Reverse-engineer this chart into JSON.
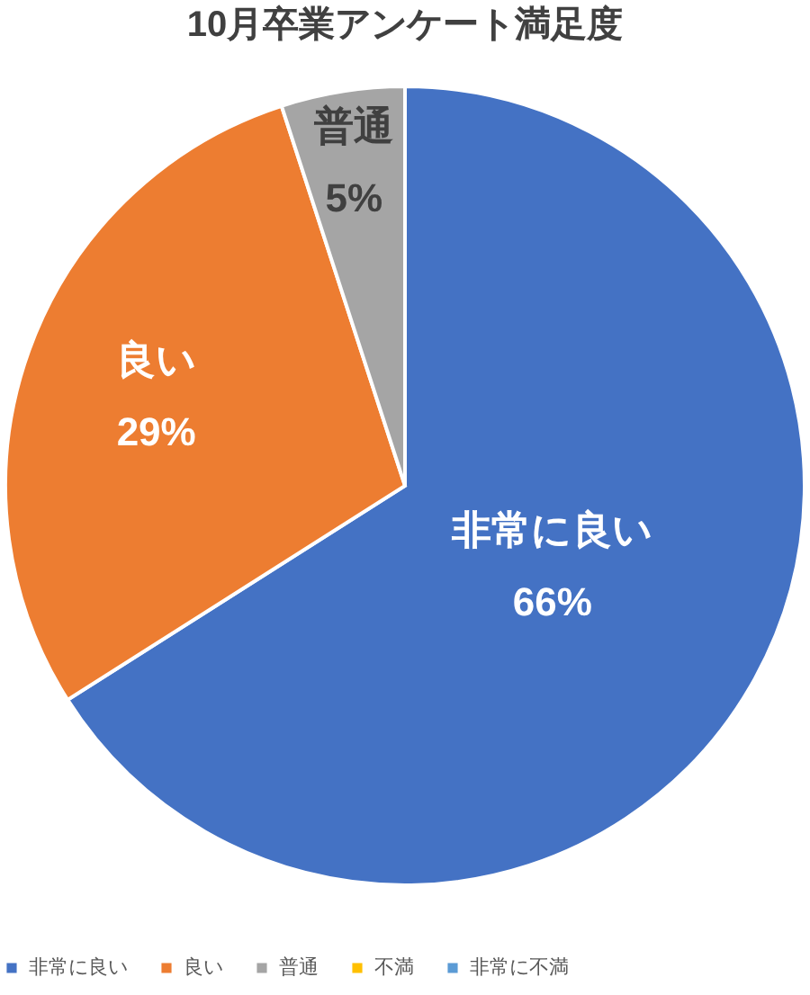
{
  "chart_data": {
    "type": "pie",
    "title": "10月卒業アンケート満足度",
    "categories": [
      "非常に良い",
      "良い",
      "普通",
      "不満",
      "非常に不満"
    ],
    "values": [
      66,
      29,
      5,
      0,
      0
    ],
    "value_labels": [
      "66%",
      "29%",
      "5%",
      null,
      null
    ],
    "colors": [
      "#4472c4",
      "#ed7d31",
      "#a5a5a5",
      "#ffc000",
      "#5b9bd5"
    ],
    "legend": "bottom"
  }
}
